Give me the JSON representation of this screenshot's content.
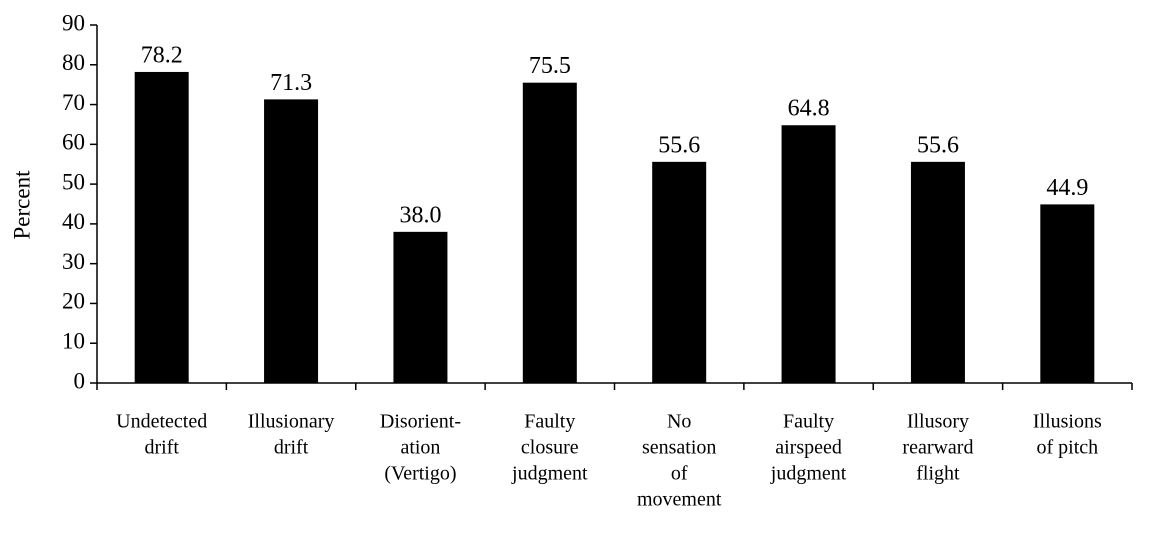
{
  "chart_data": {
    "type": "bar",
    "y_label": "Percent",
    "categories": [
      [
        "Undetected",
        "drift"
      ],
      [
        "Illusionary",
        "drift"
      ],
      [
        "Disorient-",
        "ation",
        "(Vertigo)"
      ],
      [
        "Faulty",
        "closure",
        "judgment"
      ],
      [
        "No",
        "sensation",
        "of",
        "movement"
      ],
      [
        "Faulty",
        "airspeed",
        "judgment"
      ],
      [
        "Illusory",
        "rearward",
        "flight"
      ],
      [
        "Illusions",
        "of pitch"
      ]
    ],
    "values": [
      78.2,
      71.3,
      38.0,
      75.5,
      55.6,
      64.8,
      55.6,
      44.9
    ],
    "value_labels": [
      "78.2",
      "71.3",
      "38.0",
      "75.5",
      "55.6",
      "64.8",
      "55.6",
      "44.9"
    ],
    "color": "#000000",
    "ylim": [
      0,
      90
    ],
    "yticks": [
      0,
      10,
      20,
      30,
      40,
      50,
      60,
      70,
      80,
      90
    ],
    "grid": false
  }
}
